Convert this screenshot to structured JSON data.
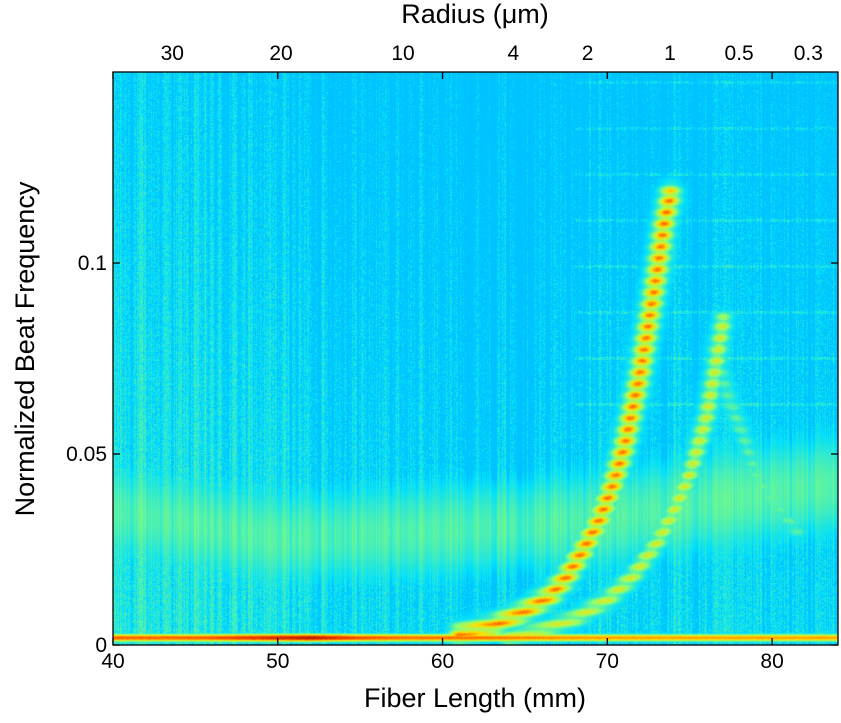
{
  "chart_data": {
    "type": "heatmap",
    "title": "",
    "xlabel": "Fiber Length (mm)",
    "ylabel": "Normalized Beat Frequency",
    "x2label": "Radius (μm)",
    "xlim": [
      40,
      84
    ],
    "ylim": [
      0,
      0.15
    ],
    "x_ticks": [
      40,
      50,
      60,
      70,
      80
    ],
    "x_tick_labels": [
      "40",
      "50",
      "60",
      "70",
      "80"
    ],
    "y_ticks": [
      0,
      0.05,
      0.1
    ],
    "y_tick_labels": [
      "0",
      "0.05",
      "0.1"
    ],
    "top_ticks": [
      {
        "label": "30",
        "fiber_length": 43.6
      },
      {
        "label": "20",
        "fiber_length": 50.2
      },
      {
        "label": "10",
        "fiber_length": 57.6
      },
      {
        "label": "4",
        "fiber_length": 64.3
      },
      {
        "label": "2",
        "fiber_length": 68.8
      },
      {
        "label": "1",
        "fiber_length": 73.8
      },
      {
        "label": "0.5",
        "fiber_length": 78.0
      },
      {
        "label": "0.3",
        "fiber_length": 82.2
      }
    ],
    "colormap": "jet",
    "colormap_stops": [
      "#00008f",
      "#0050ff",
      "#00dfff",
      "#8fff70",
      "#ffdf00",
      "#ff5000",
      "#8f0000"
    ],
    "features": {
      "baseline_band": {
        "frequency": 0.002,
        "points": [
          [
            40,
            0.82
          ],
          [
            45,
            0.82
          ],
          [
            49,
            0.9
          ],
          [
            52,
            0.95
          ],
          [
            55,
            0.84
          ],
          [
            58,
            0.8
          ],
          [
            62,
            0.8
          ],
          [
            70,
            0.74
          ],
          [
            75,
            0.74
          ],
          [
            84,
            0.74
          ]
        ]
      },
      "primary_mode": {
        "points": [
          [
            61,
            0.003
          ],
          [
            63,
            0.005
          ],
          [
            65,
            0.009
          ],
          [
            66.5,
            0.013
          ],
          [
            67.5,
            0.018
          ],
          [
            68.5,
            0.025
          ],
          [
            69.5,
            0.033
          ],
          [
            70.3,
            0.042
          ],
          [
            71,
            0.052
          ],
          [
            71.5,
            0.062
          ],
          [
            72,
            0.072
          ],
          [
            72.5,
            0.085
          ],
          [
            73,
            0.098
          ],
          [
            73.4,
            0.11
          ],
          [
            73.8,
            0.118
          ]
        ],
        "intensity": 0.8
      },
      "secondary_mode": {
        "points": [
          [
            64,
            0.002
          ],
          [
            66,
            0.004
          ],
          [
            68,
            0.007
          ],
          [
            70,
            0.012
          ],
          [
            71.5,
            0.018
          ],
          [
            73,
            0.027
          ],
          [
            74,
            0.035
          ],
          [
            75,
            0.045
          ],
          [
            76,
            0.06
          ],
          [
            76.5,
            0.072
          ],
          [
            77,
            0.085
          ]
        ],
        "intensity": 0.62
      },
      "tertiary_mode": {
        "points": [
          [
            76.5,
            0.078
          ],
          [
            77.3,
            0.065
          ],
          [
            78.2,
            0.055
          ],
          [
            79,
            0.045
          ],
          [
            80,
            0.038
          ],
          [
            81.5,
            0.03
          ]
        ],
        "intensity": 0.45
      },
      "diffuse_band": {
        "points": [
          [
            40,
            0.035
          ],
          [
            50,
            0.028
          ],
          [
            60,
            0.03
          ],
          [
            70,
            0.033
          ],
          [
            80,
            0.04
          ],
          [
            84,
            0.042
          ]
        ],
        "intensity": 0.42
      }
    }
  }
}
